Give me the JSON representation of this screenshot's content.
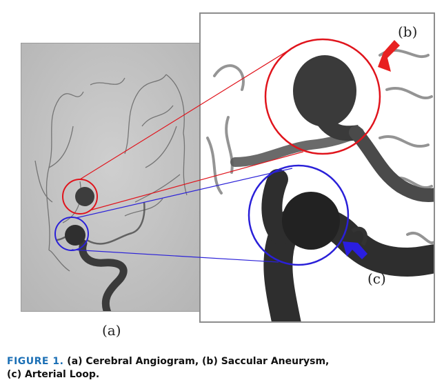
{
  "figure": {
    "panel_labels": {
      "a": "(a)",
      "b": "(b)",
      "c": "(c)"
    },
    "caption": {
      "figure_label": "FIGURE 1.",
      "text_line1": "(a) Cerebral Angiogram, (b) Saccular Aneurysm,",
      "text_line2": "(c) Arterial Loop."
    },
    "colors": {
      "aneurysm_marker": "#e0141c",
      "loop_marker": "#2a20d8",
      "caption_accent": "#1b6fb5"
    },
    "icons": {
      "aneurysm_arrow": "red-arrow-icon",
      "loop_arrow": "blue-arrow-icon"
    }
  }
}
